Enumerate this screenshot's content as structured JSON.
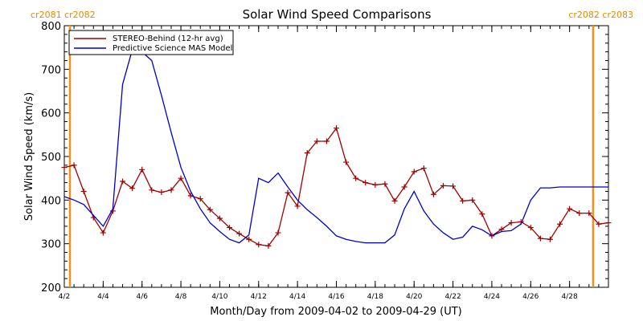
{
  "chart_data": {
    "type": "line",
    "title": "Solar Wind Speed Comparisons",
    "xlabel": "Month/Day from 2009-04-02 to 2009-04-29 (UT)",
    "ylabel": "Solar Wind Speed (km/s)",
    "ylim": [
      200,
      800
    ],
    "yticks": [
      200,
      300,
      400,
      500,
      600,
      700,
      800
    ],
    "xlim": [
      "2009-04-02",
      "2009-04-30"
    ],
    "xtick_dates": [
      "2009-04-02",
      "2009-04-04",
      "2009-04-06",
      "2009-04-08",
      "2009-04-10",
      "2009-04-12",
      "2009-04-14",
      "2009-04-16",
      "2009-04-18",
      "2009-04-20",
      "2009-04-22",
      "2009-04-24",
      "2009-04-26",
      "2009-04-28"
    ],
    "xtick_labels": [
      "4/2",
      "4/4",
      "4/6",
      "4/8",
      "4/10",
      "4/12",
      "4/14",
      "4/16",
      "4/18",
      "4/20",
      "4/22",
      "4/24",
      "4/26",
      "4/28"
    ],
    "carrington_markers": [
      {
        "date": "2009-04-02",
        "label": "cr2081 cr2082"
      },
      {
        "date": "2009-04-29T12:00",
        "label": "cr2082 cr2083"
      }
    ],
    "legend_position": "top-left",
    "series": [
      {
        "name": "STEREO-Behind (12-hr avg)",
        "color": "#a00000",
        "marker": "plus",
        "x": [
          "2009-04-02",
          "2009-04-02T12:00",
          "2009-04-03",
          "2009-04-03T12:00",
          "2009-04-04",
          "2009-04-04T12:00",
          "2009-04-05",
          "2009-04-05T12:00",
          "2009-04-06",
          "2009-04-06T12:00",
          "2009-04-07",
          "2009-04-07T12:00",
          "2009-04-08",
          "2009-04-08T12:00",
          "2009-04-09",
          "2009-04-09T12:00",
          "2009-04-10",
          "2009-04-10T12:00",
          "2009-04-11",
          "2009-04-11T12:00",
          "2009-04-12",
          "2009-04-12T12:00",
          "2009-04-13",
          "2009-04-13T12:00",
          "2009-04-14",
          "2009-04-14T12:00",
          "2009-04-15",
          "2009-04-15T12:00",
          "2009-04-16",
          "2009-04-16T12:00",
          "2009-04-17",
          "2009-04-17T12:00",
          "2009-04-18",
          "2009-04-18T12:00",
          "2009-04-19",
          "2009-04-19T12:00",
          "2009-04-20",
          "2009-04-20T12:00",
          "2009-04-21",
          "2009-04-21T12:00",
          "2009-04-22",
          "2009-04-22T12:00",
          "2009-04-23",
          "2009-04-23T12:00",
          "2009-04-24",
          "2009-04-24T12:00",
          "2009-04-25",
          "2009-04-25T12:00",
          "2009-04-26",
          "2009-04-26T12:00",
          "2009-04-27",
          "2009-04-27T12:00",
          "2009-04-28",
          "2009-04-28T12:00",
          "2009-04-29",
          "2009-04-29T12:00",
          "2009-04-30"
        ],
        "y": [
          475,
          480,
          420,
          360,
          325,
          375,
          443,
          427,
          470,
          423,
          418,
          423,
          450,
          410,
          403,
          378,
          358,
          337,
          323,
          310,
          298,
          295,
          325,
          417,
          386,
          508,
          535,
          535,
          565,
          487,
          450,
          440,
          435,
          437,
          398,
          430,
          465,
          473,
          413,
          433,
          432,
          398,
          400,
          368,
          318,
          333,
          348,
          350,
          337,
          312,
          310,
          345,
          380,
          370,
          370,
          345,
          348
        ]
      },
      {
        "name": "Predictive Science MAS Model",
        "color": "#0000cc",
        "marker": "none",
        "x": [
          "2009-04-02",
          "2009-04-02T12:00",
          "2009-04-03",
          "2009-04-03T12:00",
          "2009-04-04",
          "2009-04-04T12:00",
          "2009-04-05",
          "2009-04-05T12:00",
          "2009-04-06",
          "2009-04-06T12:00",
          "2009-04-07",
          "2009-04-07T12:00",
          "2009-04-08",
          "2009-04-08T12:00",
          "2009-04-09",
          "2009-04-09T12:00",
          "2009-04-10",
          "2009-04-10T12:00",
          "2009-04-11",
          "2009-04-11T12:00",
          "2009-04-12",
          "2009-04-12T12:00",
          "2009-04-13",
          "2009-04-13T12:00",
          "2009-04-14",
          "2009-04-14T12:00",
          "2009-04-15",
          "2009-04-15T12:00",
          "2009-04-16",
          "2009-04-16T12:00",
          "2009-04-17",
          "2009-04-17T12:00",
          "2009-04-18",
          "2009-04-18T12:00",
          "2009-04-19",
          "2009-04-19T12:00",
          "2009-04-20",
          "2009-04-20T12:00",
          "2009-04-21",
          "2009-04-21T12:00",
          "2009-04-22",
          "2009-04-22T12:00",
          "2009-04-23",
          "2009-04-23T12:00",
          "2009-04-24",
          "2009-04-24T12:00",
          "2009-04-25",
          "2009-04-25T12:00",
          "2009-04-26",
          "2009-04-26T12:00",
          "2009-04-27",
          "2009-04-27T12:00",
          "2009-04-28",
          "2009-04-28T12:00",
          "2009-04-29",
          "2009-04-29T12:00",
          "2009-04-30"
        ],
        "y": [
          408,
          400,
          390,
          365,
          340,
          380,
          665,
          745,
          740,
          720,
          640,
          555,
          475,
          420,
          380,
          348,
          328,
          310,
          302,
          320,
          450,
          440,
          462,
          430,
          400,
          378,
          360,
          340,
          318,
          310,
          305,
          302,
          302,
          302,
          320,
          380,
          420,
          375,
          345,
          325,
          310,
          315,
          340,
          332,
          318,
          328,
          330,
          345,
          400,
          428,
          428,
          430,
          430,
          430,
          430,
          430,
          430
        ]
      }
    ]
  }
}
